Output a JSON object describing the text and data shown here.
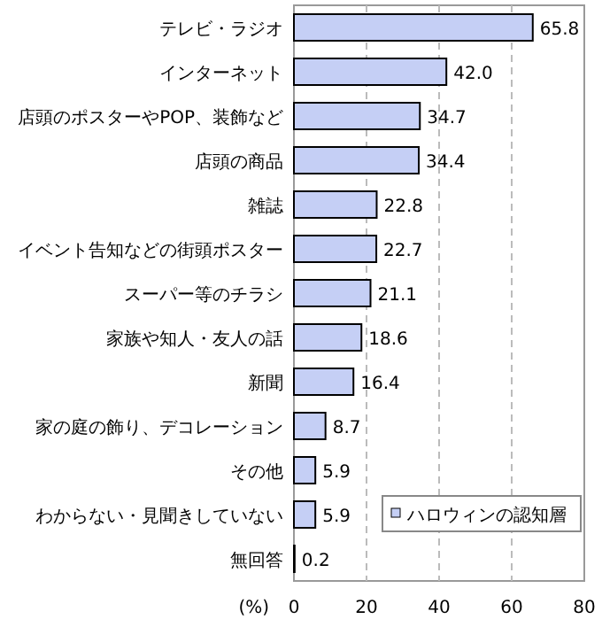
{
  "chart_data": {
    "type": "bar",
    "orientation": "horizontal",
    "xlabel": "(%)",
    "categories": [
      "テレビ・ラジオ",
      "インターネット",
      "店頭のポスターやPOP、装飾など",
      "店頭の商品",
      "雑誌",
      "イベント告知などの街頭ポスター",
      "スーパー等のチラシ",
      "家族や知人・友人の話",
      "新聞",
      "家の庭の飾り、デコレーション",
      "その他",
      "わからない・見聞きしていない",
      "無回答"
    ],
    "series": [
      {
        "name": "ハロウィンの認知層",
        "color": "#c5cff5",
        "values": [
          65.8,
          42.0,
          34.7,
          34.4,
          22.8,
          22.7,
          21.1,
          18.6,
          16.4,
          8.7,
          5.9,
          5.9,
          0.2
        ],
        "value_labels": [
          "65.8",
          "42.0",
          "34.7",
          "34.4",
          "22.8",
          "22.7",
          "21.1",
          "18.6",
          "16.4",
          "8.7",
          "5.9",
          "5.9",
          "0.2"
        ]
      }
    ],
    "xlim": [
      0,
      80
    ],
    "xticks": [
      0,
      20,
      40,
      60,
      80
    ],
    "grid": "x",
    "legend": "bottom right"
  }
}
